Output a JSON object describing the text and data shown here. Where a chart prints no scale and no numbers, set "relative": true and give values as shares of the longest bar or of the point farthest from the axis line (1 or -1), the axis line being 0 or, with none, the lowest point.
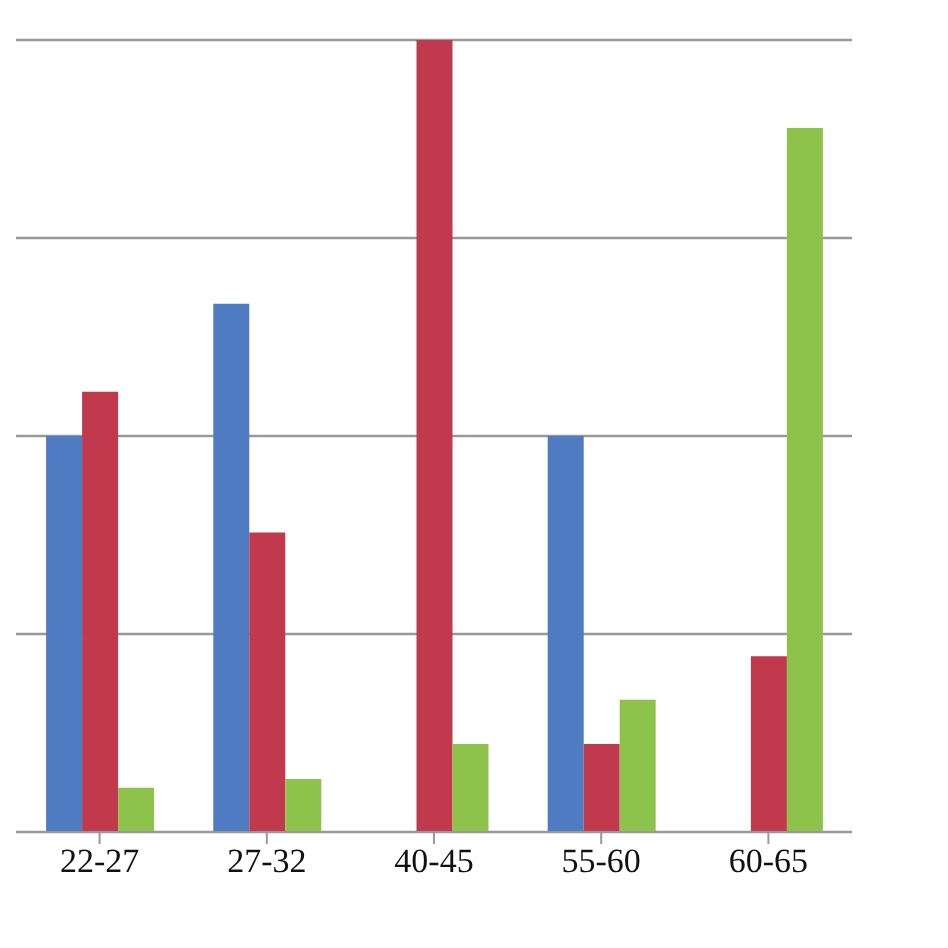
{
  "chart_data": {
    "type": "bar",
    "relative": true,
    "grid": "y",
    "categories": [
      "22-27",
      "27-32",
      "40-45",
      "55-60",
      "60-65"
    ],
    "series": [
      {
        "color": "#4f7bc2",
        "values": [
          0.5,
          0.667,
          0,
          0.5,
          0
        ]
      },
      {
        "color": "#c0394d",
        "values": [
          0.556,
          0.378,
          1,
          0.111,
          0.222
        ]
      },
      {
        "color": "#8dc34a",
        "values": [
          0.056,
          0.067,
          0.111,
          0.167,
          0.889
        ]
      }
    ]
  }
}
